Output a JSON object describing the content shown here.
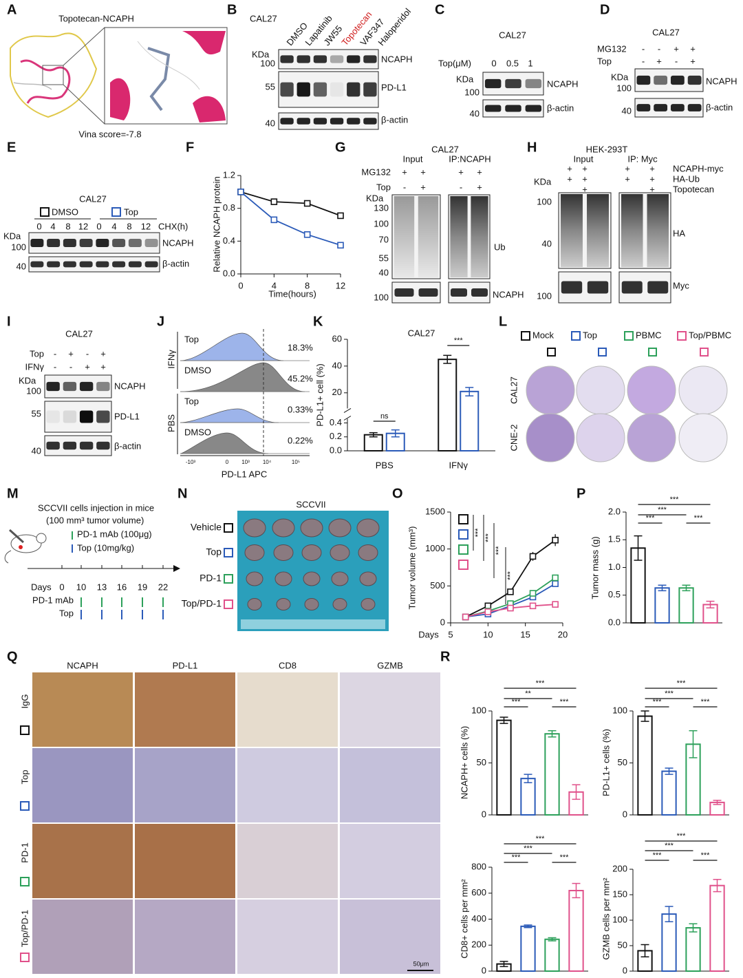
{
  "panel_labels": [
    "A",
    "B",
    "C",
    "D",
    "E",
    "F",
    "G",
    "H",
    "I",
    "J",
    "K",
    "L",
    "M",
    "N",
    "O",
    "P",
    "Q",
    "R"
  ],
  "A": {
    "title": "Topotecan-NCAPH",
    "score": "Vina score=-7.8"
  },
  "B": {
    "cell": "CAL27",
    "lanes": [
      "DMSO",
      "Lapatinib",
      "JW55",
      "Topotecan",
      "VAF347",
      "Haloperidol"
    ],
    "kda": "KDa",
    "markers": [
      "100",
      "55",
      "40"
    ],
    "bands": [
      "NCAPH",
      "PD-L1",
      "β-actin"
    ]
  },
  "C": {
    "cell": "CAL27",
    "dose_label": "Top(μM)",
    "doses": [
      "0",
      "0.5",
      "1"
    ],
    "kda": "KDa",
    "markers": [
      "100",
      "40"
    ],
    "bands": [
      "NCAPH",
      "β-actin"
    ]
  },
  "D": {
    "cell": "CAL27",
    "rows": [
      {
        "name": "MG132",
        "signs": [
          "-",
          "-",
          "+",
          "+"
        ]
      },
      {
        "name": "Top",
        "signs": [
          "-",
          "+",
          "-",
          "+"
        ]
      }
    ],
    "kda": "KDa",
    "markers": [
      "100",
      "40"
    ],
    "bands": [
      "NCAPH",
      "β-actin"
    ]
  },
  "E": {
    "cell": "CAL27",
    "groups": [
      "DMSO",
      "Top"
    ],
    "times": [
      "0",
      "4",
      "8",
      "12",
      "0",
      "4",
      "8",
      "12"
    ],
    "time_label": "CHX(h)",
    "kda": "KDa",
    "markers": [
      "100",
      "40"
    ],
    "bands": [
      "NCAPH",
      "β-actin"
    ]
  },
  "G": {
    "cell": "CAL27",
    "sections": [
      "Input",
      "IP:NCAPH"
    ],
    "rows": [
      {
        "name": "MG132",
        "signs": [
          "+",
          "+",
          "+",
          "+"
        ]
      },
      {
        "name": "Top",
        "signs": [
          "-",
          "+",
          "-",
          "+"
        ]
      }
    ],
    "kda": "KDa",
    "markers": [
      "130",
      "100",
      "70",
      "55",
      "40",
      "100"
    ],
    "bands": [
      "Ub",
      "NCAPH"
    ]
  },
  "H": {
    "cell": "HEK-293T",
    "sections": [
      "Input",
      "IP: Myc"
    ],
    "rows": [
      {
        "name": "NCAPH-myc",
        "signs": [
          "+",
          "+",
          "+",
          "+"
        ]
      },
      {
        "name": "HA-Ub",
        "signs": [
          "+",
          "+",
          "+",
          "+"
        ]
      },
      {
        "name": "Topotecan",
        "signs": [
          null,
          "+",
          null,
          "+"
        ]
      }
    ],
    "kda": "KDa",
    "markers": [
      "100",
      "40",
      "100"
    ],
    "bands": [
      "HA",
      "Myc"
    ]
  },
  "I": {
    "cell": "CAL27",
    "rows": [
      {
        "name": "Top",
        "signs": [
          "-",
          "+",
          "-",
          "+"
        ]
      },
      {
        "name": "IFNγ",
        "signs": [
          "-",
          "-",
          "+",
          "+"
        ]
      }
    ],
    "kda": "KDa",
    "markers": [
      "100",
      "55",
      "40"
    ],
    "bands": [
      "NCAPH",
      "PD-L1",
      "β-actin"
    ]
  },
  "J": {
    "groups": [
      "IFNγ",
      "PBS"
    ],
    "tracks": [
      {
        "name": "Top",
        "pct": "18.3%"
      },
      {
        "name": "DMSO",
        "pct": "45.2%"
      },
      {
        "name": "Top",
        "pct": "0.33%"
      },
      {
        "name": "DMSO",
        "pct": "0.22%"
      }
    ],
    "xticks": [
      "-10³",
      "0",
      "10³",
      "10⁴",
      "10⁵"
    ],
    "xlabel": "PD-L1 APC"
  },
  "L": {
    "legend": [
      "Mock",
      "Top",
      "PBMC",
      "Top/PBMC"
    ],
    "rows": [
      "CAL27",
      "CNE-2"
    ]
  },
  "M": {
    "title": "SCCVII cells injection in mice",
    "subtitle": "(100 mm³ tumor volume)",
    "legend": [
      "PD-1 mAb (100μg)",
      "Top (10mg/kg)"
    ],
    "days_label": "Days",
    "days": [
      "0",
      "10",
      "13",
      "16",
      "19",
      "22"
    ],
    "rows": [
      "PD-1 mAb",
      "Top"
    ]
  },
  "N": {
    "title": "SCCVII",
    "groups": [
      "Vehicle",
      "Top",
      "PD-1",
      "Top/PD-1"
    ]
  },
  "Q": {
    "columns": [
      "NCAPH",
      "PD-L1",
      "CD8",
      "GZMB"
    ],
    "rows": [
      "IgG",
      "Top",
      "PD-1",
      "Top/PD-1"
    ],
    "scale": "50μm"
  },
  "chart_data": [
    {
      "type": "line",
      "x": [
        0,
        4,
        8,
        12
      ],
      "series": [
        {
          "color": "#111111",
          "values": [
            1,
            0.88,
            0.86,
            0.71
          ]
        },
        {
          "color": "#2a5ab8",
          "values": [
            1,
            0.66,
            0.48,
            0.35
          ]
        }
      ],
      "xlim": [
        0,
        12
      ],
      "xticks": [
        0,
        4,
        8,
        12
      ],
      "ylim": [
        0,
        1.2
      ],
      "yticks": [
        {
          "value": 0,
          "label": "0.0"
        },
        0.4,
        0.8,
        1.2
      ],
      "xlabel": "Time(hours)",
      "ylabel": "Relative NCAPH protein",
      "marker": "square"
    },
    {
      "type": "bar",
      "title": "CAL27",
      "categories": [
        "PBS",
        "IFNγ"
      ],
      "series": [
        {
          "color": "#111111",
          "values": [
            0.23,
            45
          ],
          "errors": [
            0.03,
            3
          ]
        },
        {
          "color": "#2a5ab8",
          "values": [
            0.25,
            21
          ],
          "errors": [
            0.05,
            3
          ]
        }
      ],
      "ylim": [
        0,
        60
      ],
      "ybreak": [
        0.4,
        20
      ],
      "yticks": [
        {
          "value": 0,
          "label": "0.0"
        },
        0.2,
        0.4,
        20,
        40,
        60
      ],
      "ylabel": "PD-L1+ cell (%)",
      "annotations": [
        "ns",
        "***"
      ]
    },
    {
      "type": "line",
      "x": [
        7,
        10,
        13,
        16,
        19
      ],
      "series": [
        {
          "color": "#111111",
          "values": [
            80,
            230,
            420,
            900,
            1120
          ],
          "errors": [
            10,
            30,
            30,
            60,
            80
          ]
        },
        {
          "color": "#2a5ab8",
          "values": [
            80,
            120,
            230,
            350,
            530
          ],
          "errors": [
            10,
            15,
            20,
            30,
            30
          ]
        },
        {
          "color": "#2ca05a",
          "values": [
            80,
            160,
            260,
            400,
            610
          ],
          "errors": [
            10,
            15,
            20,
            30,
            35
          ]
        },
        {
          "color": "#e0508a",
          "values": [
            80,
            150,
            200,
            230,
            250
          ],
          "errors": [
            10,
            10,
            15,
            20,
            20
          ]
        }
      ],
      "xlim": [
        5,
        20
      ],
      "xticks": [
        5,
        10,
        15,
        20
      ],
      "ylim": [
        0,
        1500
      ],
      "yticks": [
        0,
        500,
        1000,
        1500
      ],
      "xlabel": "Days",
      "ylabel": "Tumor volume (mm³)",
      "legend": "upper left",
      "marker": "square",
      "annotations": [
        "***",
        "***",
        "***",
        "***"
      ]
    },
    {
      "type": "bar",
      "values": [
        1.35,
        0.63,
        0.63,
        0.33
      ],
      "errors": [
        0.22,
        0.05,
        0.05,
        0.06
      ],
      "colors": [
        "#111111",
        "#2a5ab8",
        "#2ca05a",
        "#e0508a"
      ],
      "ylim": [
        0,
        2
      ],
      "yticks": [
        {
          "value": 0,
          "label": "0.0"
        },
        0.5,
        {
          "value": 1,
          "label": "1.0"
        },
        1.5,
        {
          "value": 2,
          "label": "2.0"
        }
      ],
      "ylabel": "Tumor mass (g)",
      "annotations": [
        "***",
        "***",
        "***",
        "***"
      ]
    },
    {
      "type": "bar",
      "values": [
        91,
        35,
        78,
        22
      ],
      "errors": [
        3,
        4,
        3,
        7
      ],
      "colors": [
        "#111111",
        "#2a5ab8",
        "#2ca05a",
        "#e0508a"
      ],
      "ylim": [
        0,
        100
      ],
      "yticks": [
        0,
        50,
        100
      ],
      "ylabel": "NCAPH+ cells (%)",
      "annotations": [
        "***",
        "**",
        "***",
        "***"
      ]
    },
    {
      "type": "bar",
      "values": [
        95,
        42,
        68,
        12
      ],
      "errors": [
        5,
        3,
        13,
        2
      ],
      "colors": [
        "#111111",
        "#2a5ab8",
        "#2ca05a",
        "#e0508a"
      ],
      "ylim": [
        0,
        100
      ],
      "yticks": [
        0,
        50,
        100
      ],
      "ylabel": "PD-L1+ cells (%)",
      "annotations": [
        "***",
        "***",
        "***",
        "***"
      ]
    },
    {
      "type": "bar",
      "values": [
        55,
        345,
        245,
        620
      ],
      "errors": [
        20,
        10,
        12,
        55
      ],
      "colors": [
        "#111111",
        "#2a5ab8",
        "#2ca05a",
        "#e0508a"
      ],
      "ylim": [
        0,
        800
      ],
      "yticks": [
        0,
        200,
        400,
        600,
        800
      ],
      "ylabel": "CD8+ cells per mm²",
      "annotations": [
        "***",
        "***",
        "***",
        "***"
      ]
    },
    {
      "type": "bar",
      "values": [
        40,
        112,
        85,
        168
      ],
      "errors": [
        12,
        15,
        8,
        12
      ],
      "colors": [
        "#111111",
        "#2a5ab8",
        "#2ca05a",
        "#e0508a"
      ],
      "ylim": [
        0,
        200
      ],
      "yticks": [
        0,
        50,
        100,
        150,
        200
      ],
      "ylabel": "GZMB cells per mm²",
      "annotations": [
        "***",
        "***",
        "***",
        "***"
      ]
    }
  ]
}
